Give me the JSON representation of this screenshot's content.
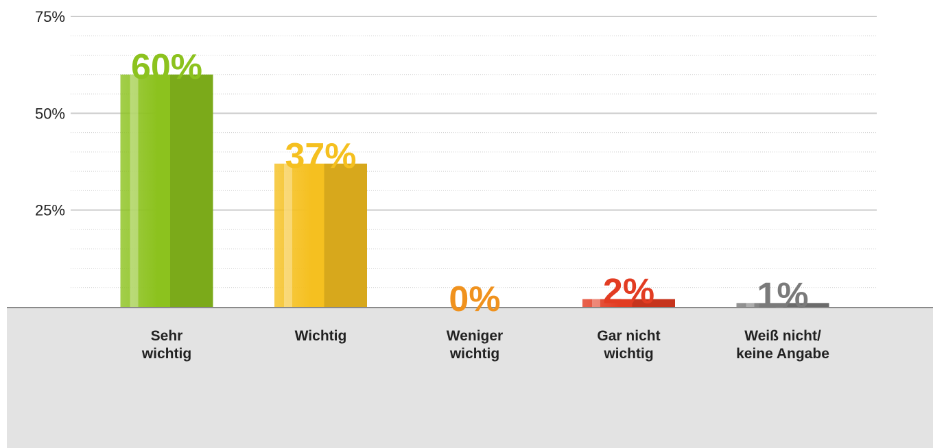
{
  "chart_data": {
    "type": "bar",
    "categories": [
      "Sehr\nwichtig",
      "Wichtig",
      "Weniger\nwichtig",
      "Gar nicht\nwichtig",
      "Weiß nicht/\nkeine Angabe"
    ],
    "values": [
      60,
      37,
      0,
      2,
      1
    ],
    "value_labels": [
      "60%",
      "37%",
      "0%",
      "2%",
      "1%"
    ],
    "colors": [
      "#8cc21e",
      "#f5c020",
      "#f0921e",
      "#e23c22",
      "#7a7a7a"
    ],
    "ylim": [
      0,
      75
    ],
    "yticks": [
      {
        "value": 25,
        "label": "25%"
      },
      {
        "value": 50,
        "label": "50%"
      },
      {
        "value": 75,
        "label": "75%"
      }
    ],
    "grid": true
  }
}
